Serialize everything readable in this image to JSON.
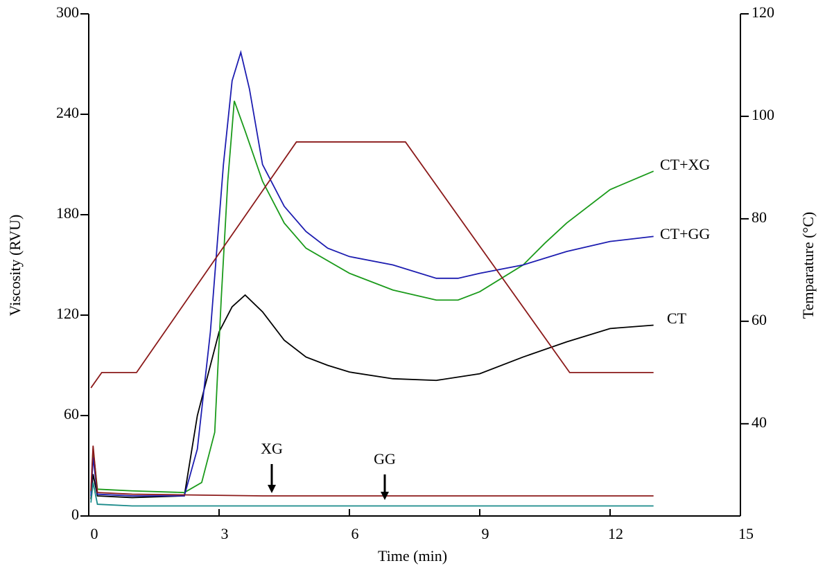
{
  "chart_data": {
    "type": "line",
    "x_label": "Time (min)",
    "y_label": "Viscosity (RVU)",
    "y2_label": "Temparature (°C)",
    "xlim": [
      0,
      15
    ],
    "xticks": [
      0,
      3,
      6,
      9,
      12,
      15
    ],
    "ylim": [
      0,
      300
    ],
    "yticks": [
      0,
      60,
      120,
      180,
      240,
      300
    ],
    "y2lim": [
      22,
      120
    ],
    "y2ticks": [
      40,
      60,
      80,
      100,
      120
    ],
    "series": [
      {
        "name": "CT",
        "color": "#000000",
        "x": [
          0.05,
          0.1,
          0.2,
          1.0,
          2.2,
          2.5,
          3.0,
          3.3,
          3.6,
          4.0,
          4.5,
          5.0,
          5.5,
          6.0,
          7.0,
          8.0,
          9.0,
          10.0,
          11.0,
          12.0,
          13.0
        ],
        "values": [
          10,
          25,
          12,
          11,
          12,
          60,
          110,
          125,
          132,
          122,
          105,
          95,
          90,
          86,
          82,
          81,
          85,
          95,
          104,
          112,
          114
        ]
      },
      {
        "name": "CT+XG",
        "color": "#1a9a1a",
        "x": [
          0.05,
          0.1,
          0.2,
          1.0,
          2.2,
          2.6,
          2.9,
          3.05,
          3.2,
          3.35,
          3.6,
          4.0,
          4.5,
          5.0,
          6.0,
          7.0,
          8.0,
          8.5,
          9.0,
          10.0,
          10.5,
          11.0,
          12.0,
          13.0
        ],
        "values": [
          14,
          40,
          16,
          15,
          14,
          20,
          50,
          130,
          200,
          248,
          230,
          200,
          175,
          160,
          145,
          135,
          129,
          129,
          134,
          150,
          163,
          175,
          195,
          206
        ]
      },
      {
        "name": "CT+GG",
        "color": "#1c1cb0",
        "x": [
          0.05,
          0.1,
          0.2,
          1.0,
          2.2,
          2.5,
          2.8,
          3.1,
          3.3,
          3.5,
          3.7,
          4.0,
          4.5,
          5.0,
          5.5,
          6.0,
          7.0,
          8.0,
          8.5,
          9.0,
          10.0,
          11.0,
          12.0,
          13.0
        ],
        "values": [
          12,
          35,
          13,
          12,
          12,
          40,
          110,
          210,
          260,
          277,
          255,
          210,
          185,
          170,
          160,
          155,
          150,
          142,
          142,
          145,
          150,
          158,
          164,
          167
        ]
      },
      {
        "name": "XG",
        "color": "#8b1a1a",
        "x": [
          0.05,
          0.1,
          0.2,
          1.0,
          4.0,
          7.0,
          10.0,
          13.0
        ],
        "values": [
          15,
          42,
          14,
          13,
          12,
          12,
          12,
          12
        ]
      },
      {
        "name": "GG",
        "color": "#1a8a8a",
        "x": [
          0.05,
          0.1,
          0.2,
          1.0,
          4.0,
          7.0,
          10.0,
          13.0
        ],
        "values": [
          8,
          20,
          7,
          6,
          6,
          6,
          6,
          6
        ]
      },
      {
        "axis": "y2",
        "color": "#8b1a1a",
        "x": [
          0.05,
          0.3,
          1.1,
          4.78,
          7.29,
          11.07,
          13.0
        ],
        "values": [
          47,
          50,
          50,
          95,
          95,
          50,
          50
        ]
      }
    ]
  }
}
